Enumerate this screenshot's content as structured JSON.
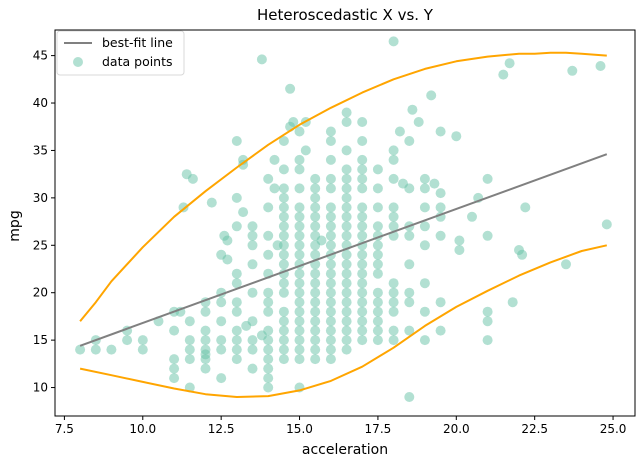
{
  "chart_data": {
    "type": "scatter",
    "title": "Heteroscedastic X vs. Y",
    "xlabel": "acceleration",
    "ylabel": "mpg",
    "xlim": [
      7.2,
      25.7
    ],
    "ylim": [
      7.0,
      47.7
    ],
    "xticks": [
      "7.5",
      "10.0",
      "12.5",
      "15.0",
      "17.5",
      "20.0",
      "22.5",
      "25.0"
    ],
    "yticks": [
      "10",
      "15",
      "20",
      "25",
      "30",
      "35",
      "40",
      "45"
    ],
    "grid": false,
    "legend": {
      "placement": "top-left",
      "entries": [
        {
          "label": "best-fit line",
          "kind": "line",
          "color": "#808080"
        },
        {
          "label": "data points",
          "kind": "point",
          "color": "#66c2a5"
        }
      ]
    },
    "colors": {
      "points": "#66c2a5",
      "fit": "#808080",
      "bounds": "#ffa500"
    },
    "fit_line": {
      "x": [
        8.0,
        24.8
      ],
      "y": [
        14.4,
        34.6
      ]
    },
    "upper_bound": {
      "x": [
        8.0,
        8.5,
        9,
        10,
        11,
        12,
        13,
        14,
        15,
        16,
        17,
        18,
        19,
        20,
        21,
        22,
        22.5,
        23,
        23.5,
        24,
        24.8
      ],
      "y": [
        17.0,
        19.0,
        21.2,
        24.8,
        28.0,
        30.7,
        33.2,
        35.6,
        37.7,
        39.5,
        41.1,
        42.5,
        43.6,
        44.4,
        44.9,
        45.2,
        45.2,
        45.3,
        45.3,
        45.2,
        45.0
      ]
    },
    "lower_bound": {
      "x": [
        8.0,
        9,
        10,
        11,
        12,
        13,
        14,
        15,
        16,
        17,
        18,
        19,
        20,
        21,
        22,
        23,
        24,
        24.8
      ],
      "y": [
        12.0,
        11.3,
        10.6,
        9.9,
        9.3,
        9.0,
        9.1,
        9.7,
        10.7,
        12.2,
        14.2,
        16.5,
        18.5,
        20.2,
        21.8,
        23.2,
        24.4,
        25.0
      ]
    },
    "points": [
      [
        8.0,
        14
      ],
      [
        8.5,
        15
      ],
      [
        8.5,
        14
      ],
      [
        9.0,
        14
      ],
      [
        9.5,
        15
      ],
      [
        9.5,
        16
      ],
      [
        10.0,
        15
      ],
      [
        10.0,
        14
      ],
      [
        10.5,
        17
      ],
      [
        11.0,
        18
      ],
      [
        11.0,
        13
      ],
      [
        11.0,
        12
      ],
      [
        11.0,
        11
      ],
      [
        11.0,
        16
      ],
      [
        11.2,
        18
      ],
      [
        11.3,
        29
      ],
      [
        11.4,
        32.5
      ],
      [
        11.5,
        13
      ],
      [
        11.5,
        15
      ],
      [
        11.5,
        14
      ],
      [
        11.5,
        10
      ],
      [
        11.5,
        17
      ],
      [
        11.6,
        32
      ],
      [
        12.0,
        13
      ],
      [
        12.0,
        14
      ],
      [
        12.0,
        15
      ],
      [
        12.0,
        16
      ],
      [
        12.0,
        18
      ],
      [
        12.0,
        19
      ],
      [
        12.0,
        12
      ],
      [
        12.0,
        13.5
      ],
      [
        12.2,
        29.5
      ],
      [
        12.5,
        11
      ],
      [
        12.5,
        14
      ],
      [
        12.5,
        15
      ],
      [
        12.5,
        17
      ],
      [
        12.5,
        19
      ],
      [
        12.5,
        20
      ],
      [
        12.5,
        24
      ],
      [
        12.6,
        26
      ],
      [
        12.7,
        25.5
      ],
      [
        12.7,
        23.5
      ],
      [
        13.0,
        13
      ],
      [
        13.0,
        14
      ],
      [
        13.0,
        15
      ],
      [
        13.0,
        16
      ],
      [
        13.0,
        18
      ],
      [
        13.0,
        19
      ],
      [
        13.0,
        21
      ],
      [
        13.0,
        22
      ],
      [
        13.0,
        27
      ],
      [
        13.0,
        36
      ],
      [
        13.0,
        30
      ],
      [
        13.2,
        33.5
      ],
      [
        13.2,
        34
      ],
      [
        13.2,
        28.5
      ],
      [
        13.3,
        16.5
      ],
      [
        13.5,
        12
      ],
      [
        13.5,
        14
      ],
      [
        13.5,
        15
      ],
      [
        13.5,
        17
      ],
      [
        13.5,
        20
      ],
      [
        13.5,
        23
      ],
      [
        13.5,
        25
      ],
      [
        13.5,
        26
      ],
      [
        13.5,
        27
      ],
      [
        13.8,
        15.5
      ],
      [
        13.8,
        44.6
      ],
      [
        14.0,
        10
      ],
      [
        14.0,
        11
      ],
      [
        14.0,
        12
      ],
      [
        14.0,
        13
      ],
      [
        14.0,
        14
      ],
      [
        14.0,
        15
      ],
      [
        14.0,
        16
      ],
      [
        14.0,
        18
      ],
      [
        14.0,
        19
      ],
      [
        14.0,
        20
      ],
      [
        14.0,
        22
      ],
      [
        14.0,
        24
      ],
      [
        14.0,
        26
      ],
      [
        14.0,
        29
      ],
      [
        14.0,
        32
      ],
      [
        14.2,
        31
      ],
      [
        14.2,
        34
      ],
      [
        14.3,
        25
      ],
      [
        14.5,
        13
      ],
      [
        14.5,
        14
      ],
      [
        14.5,
        15
      ],
      [
        14.5,
        16
      ],
      [
        14.5,
        17
      ],
      [
        14.5,
        18
      ],
      [
        14.5,
        20
      ],
      [
        14.5,
        21
      ],
      [
        14.5,
        22
      ],
      [
        14.5,
        23
      ],
      [
        14.5,
        24
      ],
      [
        14.5,
        25
      ],
      [
        14.5,
        26
      ],
      [
        14.5,
        27
      ],
      [
        14.5,
        28
      ],
      [
        14.5,
        29
      ],
      [
        14.5,
        30
      ],
      [
        14.5,
        31
      ],
      [
        14.5,
        33
      ],
      [
        14.5,
        36
      ],
      [
        14.7,
        41.5
      ],
      [
        14.7,
        37.5
      ],
      [
        14.8,
        38
      ],
      [
        15.0,
        10
      ],
      [
        15.0,
        13
      ],
      [
        15.0,
        14
      ],
      [
        15.0,
        15
      ],
      [
        15.0,
        16
      ],
      [
        15.0,
        17
      ],
      [
        15.0,
        18
      ],
      [
        15.0,
        19
      ],
      [
        15.0,
        20
      ],
      [
        15.0,
        21
      ],
      [
        15.0,
        22
      ],
      [
        15.0,
        23
      ],
      [
        15.0,
        24
      ],
      [
        15.0,
        25
      ],
      [
        15.0,
        26
      ],
      [
        15.0,
        27
      ],
      [
        15.0,
        28
      ],
      [
        15.0,
        29
      ],
      [
        15.0,
        31
      ],
      [
        15.0,
        33
      ],
      [
        15.0,
        34
      ],
      [
        15.0,
        37
      ],
      [
        15.2,
        38
      ],
      [
        15.2,
        35
      ],
      [
        15.5,
        13
      ],
      [
        15.5,
        14
      ],
      [
        15.5,
        15
      ],
      [
        15.5,
        16
      ],
      [
        15.5,
        17
      ],
      [
        15.5,
        18
      ],
      [
        15.5,
        19
      ],
      [
        15.5,
        20
      ],
      [
        15.5,
        21
      ],
      [
        15.5,
        22
      ],
      [
        15.5,
        23
      ],
      [
        15.5,
        24
      ],
      [
        15.5,
        25
      ],
      [
        15.5,
        26
      ],
      [
        15.5,
        27
      ],
      [
        15.5,
        28
      ],
      [
        15.5,
        29
      ],
      [
        15.5,
        30
      ],
      [
        15.5,
        31
      ],
      [
        15.5,
        32
      ],
      [
        15.7,
        25.5
      ],
      [
        16.0,
        13
      ],
      [
        16.0,
        14
      ],
      [
        16.0,
        15
      ],
      [
        16.0,
        16
      ],
      [
        16.0,
        17
      ],
      [
        16.0,
        18
      ],
      [
        16.0,
        19
      ],
      [
        16.0,
        20
      ],
      [
        16.0,
        21
      ],
      [
        16.0,
        22
      ],
      [
        16.0,
        23
      ],
      [
        16.0,
        24
      ],
      [
        16.0,
        25
      ],
      [
        16.0,
        26
      ],
      [
        16.0,
        27
      ],
      [
        16.0,
        28
      ],
      [
        16.0,
        29
      ],
      [
        16.0,
        31
      ],
      [
        16.0,
        32
      ],
      [
        16.0,
        34
      ],
      [
        16.0,
        36
      ],
      [
        16.0,
        37
      ],
      [
        16.5,
        14
      ],
      [
        16.5,
        15
      ],
      [
        16.5,
        16
      ],
      [
        16.5,
        17
      ],
      [
        16.5,
        18
      ],
      [
        16.5,
        19
      ],
      [
        16.5,
        20
      ],
      [
        16.5,
        21
      ],
      [
        16.5,
        22
      ],
      [
        16.5,
        23
      ],
      [
        16.5,
        24
      ],
      [
        16.5,
        25
      ],
      [
        16.5,
        26
      ],
      [
        16.5,
        27
      ],
      [
        16.5,
        28
      ],
      [
        16.5,
        29
      ],
      [
        16.5,
        30
      ],
      [
        16.5,
        31
      ],
      [
        16.5,
        32
      ],
      [
        16.5,
        33
      ],
      [
        16.5,
        35
      ],
      [
        16.5,
        38
      ],
      [
        16.5,
        39
      ],
      [
        17.0,
        15
      ],
      [
        17.0,
        16
      ],
      [
        17.0,
        17
      ],
      [
        17.0,
        18
      ],
      [
        17.0,
        19
      ],
      [
        17.0,
        20
      ],
      [
        17.0,
        21
      ],
      [
        17.0,
        22
      ],
      [
        17.0,
        23
      ],
      [
        17.0,
        24
      ],
      [
        17.0,
        25
      ],
      [
        17.0,
        26
      ],
      [
        17.0,
        27
      ],
      [
        17.0,
        28
      ],
      [
        17.0,
        29
      ],
      [
        17.0,
        31
      ],
      [
        17.0,
        32
      ],
      [
        17.0,
        33
      ],
      [
        17.0,
        34
      ],
      [
        17.0,
        36
      ],
      [
        17.0,
        38
      ],
      [
        17.5,
        15
      ],
      [
        17.5,
        16
      ],
      [
        17.5,
        17
      ],
      [
        17.5,
        18
      ],
      [
        17.5,
        19
      ],
      [
        17.5,
        20
      ],
      [
        17.5,
        22
      ],
      [
        17.5,
        23
      ],
      [
        17.5,
        24
      ],
      [
        17.5,
        25
      ],
      [
        17.5,
        26
      ],
      [
        17.5,
        27
      ],
      [
        17.5,
        29
      ],
      [
        17.5,
        31
      ],
      [
        17.5,
        33
      ],
      [
        18.0,
        15
      ],
      [
        18.0,
        16
      ],
      [
        18.0,
        18
      ],
      [
        18.0,
        19
      ],
      [
        18.0,
        20
      ],
      [
        18.0,
        21
      ],
      [
        18.0,
        26
      ],
      [
        18.0,
        27
      ],
      [
        18.0,
        28
      ],
      [
        18.0,
        29
      ],
      [
        18.0,
        32
      ],
      [
        18.0,
        34
      ],
      [
        18.0,
        35
      ],
      [
        18.0,
        46.5
      ],
      [
        18.2,
        37
      ],
      [
        18.3,
        31.5
      ],
      [
        18.5,
        9
      ],
      [
        18.5,
        16
      ],
      [
        18.5,
        19
      ],
      [
        18.5,
        20
      ],
      [
        18.5,
        23
      ],
      [
        18.5,
        26
      ],
      [
        18.5,
        27
      ],
      [
        18.5,
        31
      ],
      [
        18.5,
        36
      ],
      [
        18.6,
        39.3
      ],
      [
        18.8,
        38
      ],
      [
        19.0,
        15
      ],
      [
        19.0,
        18
      ],
      [
        19.0,
        21
      ],
      [
        19.0,
        25
      ],
      [
        19.0,
        27
      ],
      [
        19.0,
        29
      ],
      [
        19.0,
        31
      ],
      [
        19.0,
        32
      ],
      [
        19.2,
        40.8
      ],
      [
        19.3,
        31.5
      ],
      [
        19.5,
        16
      ],
      [
        19.5,
        19
      ],
      [
        19.5,
        26
      ],
      [
        19.5,
        28
      ],
      [
        19.5,
        29
      ],
      [
        19.5,
        30.5
      ],
      [
        19.5,
        37
      ],
      [
        20.0,
        36.5
      ],
      [
        20.1,
        24.5
      ],
      [
        20.1,
        25.5
      ],
      [
        20.5,
        28
      ],
      [
        20.7,
        30
      ],
      [
        21.0,
        15
      ],
      [
        21.0,
        17
      ],
      [
        21.0,
        18
      ],
      [
        21.0,
        26
      ],
      [
        21.0,
        32
      ],
      [
        21.5,
        43
      ],
      [
        21.7,
        44.2
      ],
      [
        21.8,
        19
      ],
      [
        22.0,
        24.5
      ],
      [
        22.1,
        24
      ],
      [
        22.2,
        29
      ],
      [
        23.5,
        23
      ],
      [
        23.7,
        43.4
      ],
      [
        24.6,
        43.9
      ],
      [
        24.8,
        27.2
      ]
    ]
  }
}
